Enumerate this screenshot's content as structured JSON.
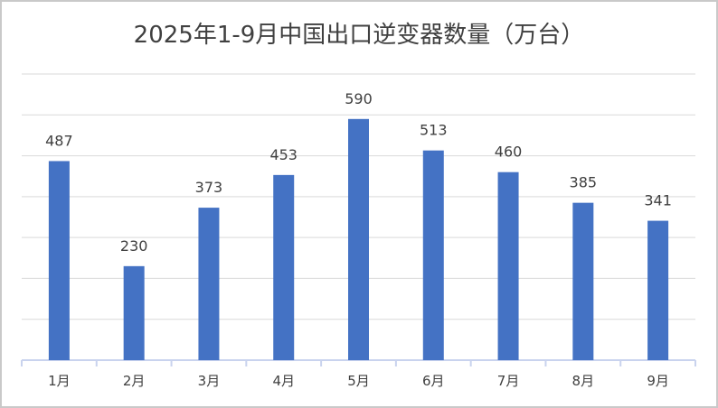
{
  "chart_data": {
    "type": "bar",
    "title": "2025年1-9月中国出口逆变器数量（万台）",
    "categories": [
      "1月",
      "2月",
      "3月",
      "4月",
      "5月",
      "6月",
      "7月",
      "8月",
      "9月"
    ],
    "values": [
      487,
      230,
      373,
      453,
      590,
      513,
      460,
      385,
      341
    ],
    "ylim": [
      0,
      700
    ],
    "grid": true,
    "bar_color": "#4472C4",
    "grid_color": "#D9D9D9",
    "axis_color": "#C9D3EE",
    "data_labels": true
  }
}
